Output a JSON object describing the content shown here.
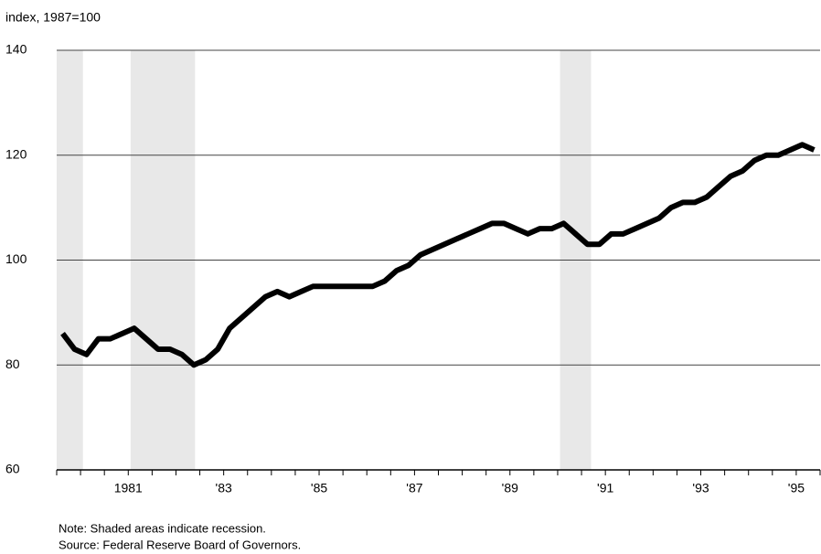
{
  "chart_data": {
    "type": "line",
    "y_axis_label": "index, 1987=100",
    "note": "Note:  Shaded areas indicate recession.",
    "source": "Source: Federal Reserve Board of Governors.",
    "x": [
      1980.125,
      1980.375,
      1980.625,
      1980.875,
      1981.125,
      1981.375,
      1981.625,
      1981.875,
      1982.125,
      1982.375,
      1982.625,
      1982.875,
      1983.125,
      1983.375,
      1983.625,
      1983.875,
      1984.125,
      1984.375,
      1984.625,
      1984.875,
      1985.125,
      1985.375,
      1985.625,
      1985.875,
      1986.125,
      1986.375,
      1986.625,
      1986.875,
      1987.125,
      1987.375,
      1987.625,
      1987.875,
      1988.125,
      1988.375,
      1988.625,
      1988.875,
      1989.125,
      1989.375,
      1989.625,
      1989.875,
      1990.125,
      1990.375,
      1990.625,
      1990.875,
      1991.125,
      1991.375,
      1991.625,
      1991.875,
      1992.125,
      1992.375,
      1992.625,
      1992.875,
      1993.125,
      1993.375,
      1993.625,
      1993.875,
      1994.125,
      1994.375,
      1994.625,
      1994.875,
      1995.125,
      1995.375,
      1995.625,
      1995.875
    ],
    "series": [
      {
        "color": "#000000",
        "values": [
          86,
          83,
          82,
          85,
          85,
          86,
          87,
          85,
          83,
          83,
          82,
          80,
          81,
          83,
          87,
          89,
          91,
          93,
          94,
          93,
          94,
          95,
          95,
          95,
          95,
          95,
          95,
          96,
          98,
          99,
          101,
          102,
          103,
          104,
          105,
          106,
          107,
          107,
          106,
          105,
          106,
          106,
          107,
          105,
          103,
          103,
          105,
          105,
          106,
          107,
          108,
          110,
          111,
          111,
          112,
          114,
          116,
          117,
          119,
          120,
          120,
          121,
          122,
          121
        ]
      }
    ],
    "recessions": [
      [
        1980.0,
        1980.55
      ],
      [
        1981.55,
        1982.9
      ],
      [
        1990.55,
        1991.2
      ]
    ],
    "recession_color": "#e8e8e8",
    "xlim": [
      1980,
      1996
    ],
    "xticks": [
      {
        "value": 1981.5,
        "label": "1981"
      },
      {
        "value": 1983.5,
        "label": "'83"
      },
      {
        "value": 1985.5,
        "label": "'85"
      },
      {
        "value": 1987.5,
        "label": "'87"
      },
      {
        "value": 1989.5,
        "label": "'89"
      },
      {
        "value": 1991.5,
        "label": "'91"
      },
      {
        "value": 1993.5,
        "label": "'93"
      },
      {
        "value": 1995.5,
        "label": "'95"
      }
    ],
    "xminorticks": [
      1980,
      1980.5,
      1981,
      1981.5,
      1982,
      1982.5,
      1983,
      1983.5,
      1984,
      1984.5,
      1985,
      1985.5,
      1986,
      1986.5,
      1987,
      1987.5,
      1988,
      1988.5,
      1989,
      1989.5,
      1990,
      1990.5,
      1991,
      1991.5,
      1992,
      1992.5,
      1993,
      1993.5,
      1994,
      1994.5,
      1995,
      1995.5,
      1996
    ],
    "ylim": [
      60,
      140
    ],
    "yticks": [
      60,
      80,
      100,
      120,
      140
    ],
    "grid": true
  }
}
